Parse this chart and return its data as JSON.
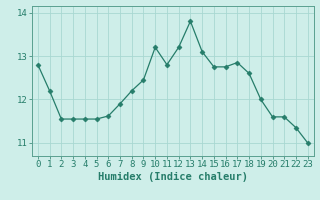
{
  "x": [
    0,
    1,
    2,
    3,
    4,
    5,
    6,
    7,
    8,
    9,
    10,
    11,
    12,
    13,
    14,
    15,
    16,
    17,
    18,
    19,
    20,
    21,
    22,
    23
  ],
  "y": [
    12.8,
    12.2,
    11.55,
    11.55,
    11.55,
    11.55,
    11.62,
    11.9,
    12.2,
    12.45,
    13.2,
    12.8,
    13.2,
    13.8,
    13.1,
    12.75,
    12.75,
    12.85,
    12.6,
    12.0,
    11.6,
    11.6,
    11.35,
    11.0
  ],
  "line_color": "#267d6a",
  "marker": "D",
  "marker_size": 2.5,
  "bg_color": "#ceeee9",
  "grid_color": "#a8d8d2",
  "axis_color": "#267d6a",
  "spine_color": "#5aa090",
  "xlabel": "Humidex (Indice chaleur)",
  "xlim_min": -0.5,
  "xlim_max": 23.5,
  "ylim_min": 10.7,
  "ylim_max": 14.15,
  "yticks": [
    11,
    12,
    13,
    14
  ],
  "xticks": [
    0,
    1,
    2,
    3,
    4,
    5,
    6,
    7,
    8,
    9,
    10,
    11,
    12,
    13,
    14,
    15,
    16,
    17,
    18,
    19,
    20,
    21,
    22,
    23
  ],
  "xlabel_fontsize": 7.5,
  "tick_fontsize": 6.5
}
